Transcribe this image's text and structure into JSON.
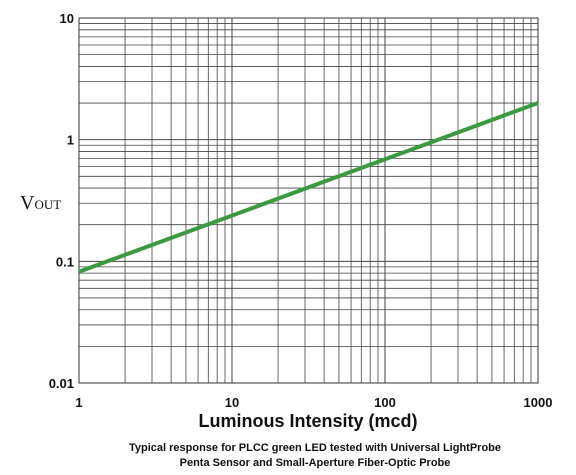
{
  "chart_data": {
    "type": "line",
    "xscale": "log",
    "yscale": "log",
    "xlim": [
      1,
      1000
    ],
    "ylim": [
      0.01,
      10
    ],
    "grid": true,
    "x_ticks": [
      1,
      10,
      100,
      1000
    ],
    "x_tick_labels": [
      "1",
      "10",
      "100",
      "1000"
    ],
    "y_ticks": [
      10,
      1,
      0.1,
      0.01
    ],
    "y_tick_labels": [
      "10",
      "1",
      "0.1",
      "0.01"
    ],
    "ylabel_main": "V",
    "ylabel_sub": "OUT",
    "xlabel": "Luminous Intensity (mcd)",
    "caption_lines": [
      "Typical response for PLCC green LED tested with Universal LightProbe",
      "Penta Sensor and Small-Aperture Fiber-Optic Probe"
    ],
    "series": [
      {
        "color": "#3a9a3f",
        "x": [
          1,
          1000
        ],
        "y": [
          0.082,
          2.0
        ]
      }
    ]
  }
}
